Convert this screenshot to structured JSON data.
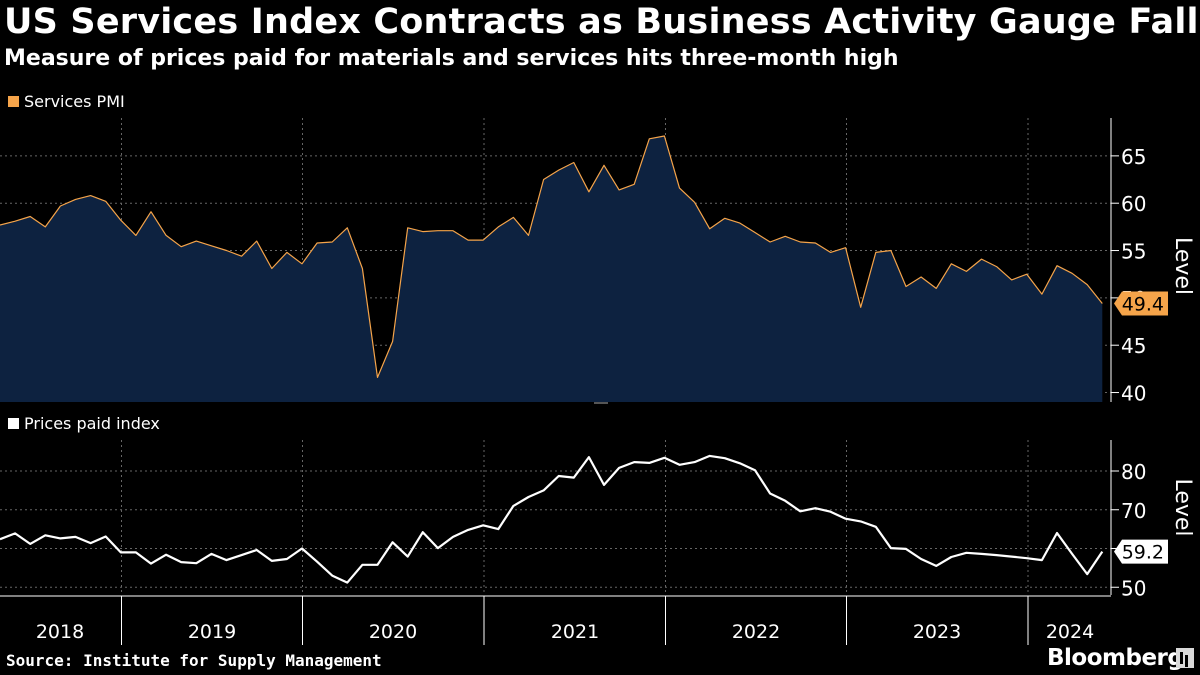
{
  "header": {
    "title": "US Services Index Contracts as Business Activity Gauge Falls",
    "subtitle": "Measure of prices paid for materials and services hits three-month high"
  },
  "footer": {
    "source": "Source: Institute for Supply Management",
    "brand": "Bloomberg"
  },
  "colors": {
    "background": "#000000",
    "pmi_line": "#f5a44a",
    "pmi_fill": "#0d2240",
    "prices_line": "#ffffff",
    "grid": "#666666"
  },
  "chart_data": [
    {
      "type": "area",
      "legend": "Services PMI",
      "ylabel": "Level",
      "ylim": [
        39,
        69
      ],
      "yticks": [
        40,
        45,
        50,
        55,
        60,
        65
      ],
      "grid": true,
      "last_value_label": "49.4",
      "start": "2018-01",
      "values": [
        57.7,
        58.1,
        58.6,
        57.5,
        59.7,
        60.4,
        60.8,
        60.2,
        58.2,
        56.6,
        59.1,
        56.6,
        55.4,
        56.0,
        55.5,
        55.0,
        54.4,
        56.0,
        53.1,
        54.8,
        53.6,
        55.8,
        55.9,
        57.4,
        53.1,
        41.6,
        45.4,
        57.4,
        57.0,
        57.1,
        57.1,
        56.1,
        56.1,
        57.5,
        58.5,
        56.6,
        62.5,
        63.5,
        64.3,
        61.2,
        64.0,
        61.4,
        62.0,
        66.8,
        67.1,
        61.6,
        60.1,
        57.3,
        58.4,
        57.9,
        56.9,
        55.9,
        56.5,
        55.9,
        55.8,
        54.8,
        55.3,
        49.0,
        54.8,
        55.0,
        51.2,
        52.2,
        51.0,
        53.6,
        52.8,
        54.1,
        53.3,
        51.9,
        52.5,
        50.4,
        53.4,
        52.6,
        51.4,
        49.4
      ]
    },
    {
      "type": "line",
      "legend": "Prices paid index",
      "ylabel": "Level",
      "ylim": [
        48,
        88
      ],
      "yticks": [
        50,
        60,
        70,
        80
      ],
      "grid": true,
      "last_value_label": "59.2",
      "start": "2018-01",
      "values": [
        62.4,
        63.9,
        61.2,
        63.4,
        62.6,
        63.0,
        61.4,
        63.1,
        59.0,
        59.0,
        56.1,
        58.4,
        56.5,
        56.2,
        58.6,
        57.0,
        58.3,
        59.6,
        56.8,
        57.3,
        60.0,
        56.6,
        53.0,
        51.2,
        55.8,
        55.8,
        61.6,
        57.9,
        64.2,
        60.1,
        63.0,
        64.8,
        66.0,
        65.0,
        71.0,
        73.3,
        75.0,
        78.7,
        78.3,
        83.6,
        76.4,
        80.8,
        82.3,
        82.1,
        83.4,
        81.6,
        82.3,
        83.9,
        83.3,
        82.0,
        80.2,
        74.2,
        72.3,
        69.6,
        70.4,
        69.5,
        67.7,
        67.0,
        65.6,
        60.1,
        59.9,
        57.3,
        55.5,
        57.8,
        58.9,
        58.6,
        58.3,
        57.9,
        57.5,
        57.0,
        64.0,
        58.6,
        53.4,
        59.2
      ]
    }
  ],
  "x_axis": {
    "years": [
      "2018",
      "2019",
      "2020",
      "2021",
      "2022",
      "2023",
      "2024"
    ]
  }
}
